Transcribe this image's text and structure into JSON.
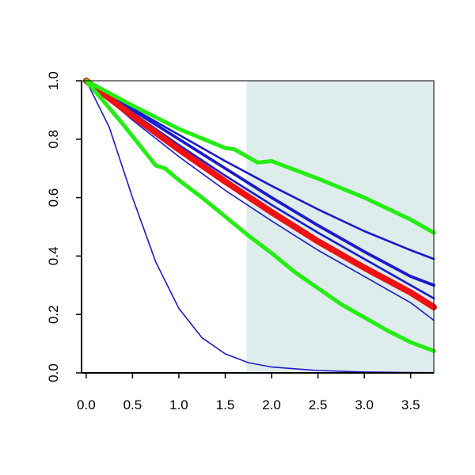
{
  "chart_data": {
    "type": "line",
    "title": "",
    "xlabel": "",
    "ylabel": "",
    "xlim": [
      -0.05,
      3.75
    ],
    "ylim": [
      0,
      1.0
    ],
    "x_ticks": [
      "0.0",
      "0.5",
      "1.0",
      "1.5",
      "2.0",
      "2.5",
      "3.0",
      "3.5"
    ],
    "y_ticks": [
      "0.0",
      "0.2",
      "0.4",
      "0.6",
      "0.8",
      "1.0"
    ],
    "grid": false,
    "shaded_region": {
      "x_start": 1.73,
      "x_end": 3.75,
      "color": "#dfecec"
    },
    "series": [
      {
        "color": "#1a1acc",
        "width": "thin",
        "points": [
          [
            0,
            1.0
          ],
          [
            0.25,
            0.84
          ],
          [
            0.5,
            0.6
          ],
          [
            0.75,
            0.38
          ],
          [
            1.0,
            0.22
          ],
          [
            1.25,
            0.12
          ],
          [
            1.5,
            0.065
          ],
          [
            1.75,
            0.035
          ],
          [
            2.0,
            0.02
          ],
          [
            2.5,
            0.008
          ],
          [
            3.0,
            0.003
          ],
          [
            3.5,
            0.001
          ],
          [
            3.75,
            0.0005
          ]
        ]
      },
      {
        "color": "#1a1acc",
        "width": "thin",
        "points": [
          [
            0,
            1.0
          ],
          [
            0.5,
            0.865
          ],
          [
            1.0,
            0.74
          ],
          [
            1.5,
            0.625
          ],
          [
            2.0,
            0.52
          ],
          [
            2.5,
            0.42
          ],
          [
            3.0,
            0.33
          ],
          [
            3.5,
            0.24
          ],
          [
            3.75,
            0.18
          ]
        ]
      },
      {
        "color": "#1a1acc",
        "width": "medium",
        "points": [
          [
            0,
            1.0
          ],
          [
            0.5,
            0.89
          ],
          [
            1.0,
            0.78
          ],
          [
            1.5,
            0.675
          ],
          [
            2.0,
            0.575
          ],
          [
            2.5,
            0.48
          ],
          [
            3.0,
            0.39
          ],
          [
            3.5,
            0.3
          ],
          [
            3.75,
            0.255
          ]
        ]
      },
      {
        "color": "#1a1acc",
        "width": "thick",
        "points": [
          [
            0,
            1.0
          ],
          [
            0.5,
            0.9
          ],
          [
            1.0,
            0.8
          ],
          [
            1.5,
            0.7
          ],
          [
            2.0,
            0.6
          ],
          [
            2.5,
            0.505
          ],
          [
            3.0,
            0.415
          ],
          [
            3.5,
            0.33
          ],
          [
            3.75,
            0.3
          ]
        ]
      },
      {
        "color": "#1a1acc",
        "width": "medium",
        "points": [
          [
            0,
            1.0
          ],
          [
            0.5,
            0.905
          ],
          [
            1.0,
            0.815
          ],
          [
            1.5,
            0.725
          ],
          [
            2.0,
            0.64
          ],
          [
            2.5,
            0.56
          ],
          [
            3.0,
            0.485
          ],
          [
            3.5,
            0.42
          ],
          [
            3.75,
            0.39
          ]
        ]
      },
      {
        "color": "#ee1111",
        "width": "extra",
        "points": [
          [
            0,
            1.0
          ],
          [
            0.5,
            0.88
          ],
          [
            1.0,
            0.765
          ],
          [
            1.5,
            0.655
          ],
          [
            2.0,
            0.55
          ],
          [
            2.5,
            0.45
          ],
          [
            3.0,
            0.36
          ],
          [
            3.5,
            0.275
          ],
          [
            3.75,
            0.225
          ]
        ]
      },
      {
        "color": "#22ee11",
        "width": "heavy",
        "points": [
          [
            0,
            1.0
          ],
          [
            0.4,
            0.85
          ],
          [
            0.75,
            0.71
          ],
          [
            0.85,
            0.7
          ],
          [
            1.0,
            0.66
          ],
          [
            1.25,
            0.6
          ],
          [
            1.5,
            0.535
          ],
          [
            1.75,
            0.47
          ],
          [
            2.0,
            0.41
          ],
          [
            2.25,
            0.345
          ],
          [
            2.5,
            0.29
          ],
          [
            2.75,
            0.235
          ],
          [
            3.0,
            0.19
          ],
          [
            3.25,
            0.145
          ],
          [
            3.5,
            0.105
          ],
          [
            3.75,
            0.075
          ]
        ]
      },
      {
        "color": "#22ee11",
        "width": "heavy",
        "points": [
          [
            0,
            1.0
          ],
          [
            0.5,
            0.915
          ],
          [
            1.0,
            0.835
          ],
          [
            1.5,
            0.77
          ],
          [
            1.6,
            0.765
          ],
          [
            1.85,
            0.72
          ],
          [
            2.0,
            0.725
          ],
          [
            2.5,
            0.665
          ],
          [
            3.0,
            0.6
          ],
          [
            3.5,
            0.525
          ],
          [
            3.75,
            0.48
          ]
        ]
      }
    ]
  }
}
